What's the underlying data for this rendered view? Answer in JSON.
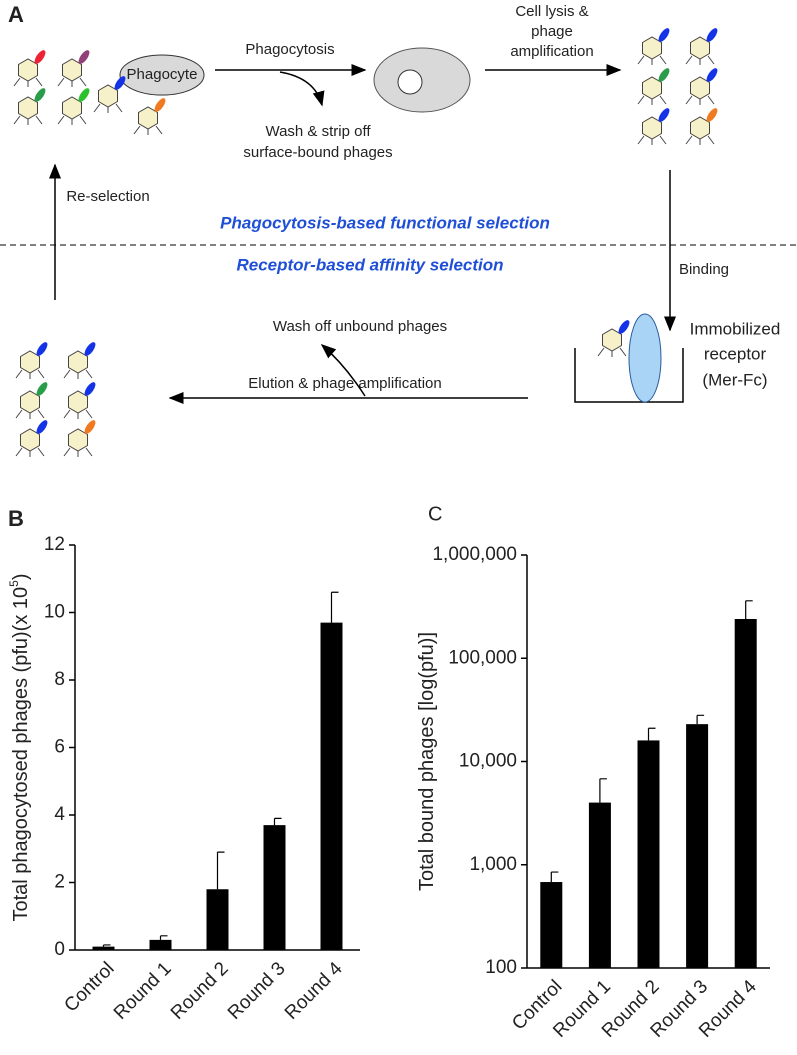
{
  "diagram": {
    "panel_label": "A",
    "phagocyte": "Phagocyte",
    "phagocytosis": "Phagocytosis",
    "wash_strip": [
      "Wash & strip off",
      "surface-bound phages"
    ],
    "cell_lysis": [
      "Cell lysis &",
      "phage",
      "amplification"
    ],
    "re_selection": "Re-selection",
    "functional_selection": "Phagocytosis-based functional selection",
    "affinity_selection": "Receptor-based affinity selection",
    "binding": "Binding",
    "receptor": [
      "Immobilized",
      "receptor",
      "(Mer-Fc)"
    ],
    "wash_off": "Wash off unbound phages",
    "elution": "Elution & phage amplification"
  },
  "chart_data": [
    {
      "type": "bar",
      "panel_label": "B",
      "y_label": [
        "Total phagocytosed phages (pfu)(x 10",
        "5",
        ")"
      ],
      "categories": [
        "Control",
        "Round 1",
        "Round 2",
        "Round 3",
        "Round 4"
      ],
      "values": [
        0.1,
        0.3,
        1.8,
        3.7,
        9.7
      ],
      "errors": [
        0.05,
        0.12,
        1.1,
        0.2,
        0.9
      ],
      "color": "#000000",
      "ylim": [
        0,
        12
      ],
      "yticks": [
        0,
        2,
        4,
        6,
        8,
        10,
        12
      ],
      "log_scale": false
    },
    {
      "type": "bar",
      "panel_label": "C",
      "y_label": [
        "Total bound phages [log(pfu)]"
      ],
      "categories": [
        "Control",
        "Round 1",
        "Round 2",
        "Round 3",
        "Round 4"
      ],
      "values": [
        680,
        4000,
        16000,
        23000,
        240000
      ],
      "errors": [
        170,
        2800,
        5000,
        5000,
        120000
      ],
      "color": "#000000",
      "ylim": [
        100,
        1000000
      ],
      "yticks": [
        100,
        {
          "value": 1000,
          "label": "1,000"
        },
        {
          "value": 10000,
          "label": "10,000"
        },
        {
          "value": 100000,
          "label": "100,000"
        },
        {
          "value": 1000000,
          "label": "1,000,000"
        }
      ],
      "log_scale": true
    }
  ]
}
